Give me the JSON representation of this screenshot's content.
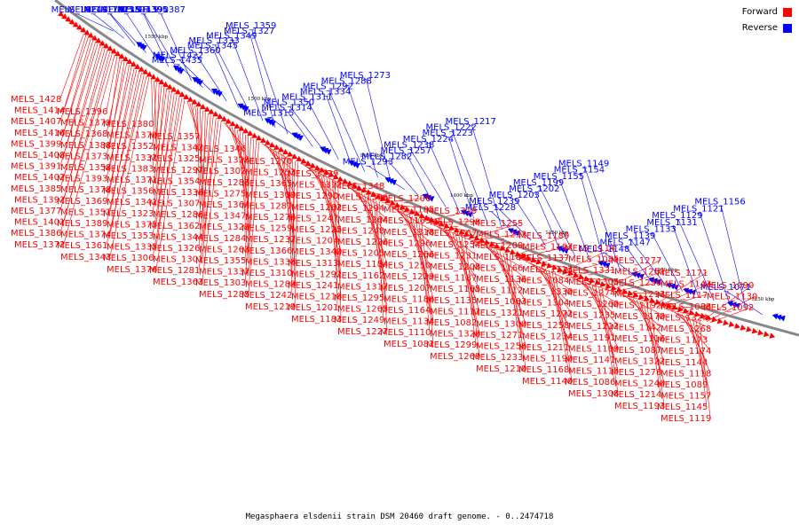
{
  "legend": {
    "forward_label": "Forward",
    "reverse_label": "Reverse",
    "forward_color": "#ff0000",
    "reverse_color": "#0000ff"
  },
  "caption": "Megasphaera elsdenii strain DSM 20460 draft genome. - 0..2474718",
  "scale_ticks": [
    "1550 kbp",
    "1500 kbp",
    "1450 kbp",
    "1400 kbp",
    "1350 kbp",
    "1300 kbp",
    "1250 kbp"
  ],
  "reverse_labels": [
    "MELS_1424",
    "MELS_1417",
    "MELS_1415",
    "MELS_1423",
    "MELS_1394",
    "MELS_1395",
    "MELS_1390",
    "MELS_1387",
    "MELS_1435",
    "MELS_1422",
    "MELS_1360",
    "MELS_1345",
    "MELS_1333",
    "MELS_1349",
    "MELS_1327",
    "MELS_1359",
    "MELS_1315",
    "MELS_1314",
    "MELS_1350",
    "MELS_1311",
    "MELS_1334",
    "MELS_1292",
    "MELS_1288",
    "MELS_1273",
    "MELS_1293",
    "MELS_1282",
    "MELS_1257",
    "MELS_1238",
    "MELS_1224",
    "MELS_1223",
    "MELS_1222",
    "MELS_1217",
    "MELS_1228",
    "MELS_1239",
    "MELS_1203",
    "MELS_1202",
    "MELS_1199",
    "MELS_1155",
    "MELS_1154",
    "MELS_1149",
    "MELS_1148",
    "MELS_1147",
    "MELS_1139",
    "MELS_1133",
    "MELS_1131",
    "MELS_1129",
    "MELS_1121",
    "MELS_1156",
    "MELS_1071"
  ],
  "forward_labels": [
    "MELS_1428",
    "MELS_1414",
    "MELS_1407",
    "MELS_1416",
    "MELS_1399",
    "MELS_1408",
    "MELS_1391",
    "MELS_1402",
    "MELS_1385",
    "MELS_1392",
    "MELS_1377",
    "MELS_1401",
    "MELS_1386",
    "MELS_1372",
    "MELS_1396",
    "MELS_1379",
    "MELS_1368",
    "MELS_1388",
    "MELS_1373",
    "MELS_1358",
    "MELS_1393",
    "MELS_1378",
    "MELS_1369",
    "MELS_1351",
    "MELS_1389",
    "MELS_1374",
    "MELS_1361",
    "MELS_1343",
    "MELS_1380",
    "MELS_1370",
    "MELS_1352",
    "MELS_1332",
    "MELS_1383",
    "MELS_1371",
    "MELS_1356",
    "MELS_1341",
    "MELS_1323",
    "MELS_1375",
    "MELS_1353",
    "MELS_1335",
    "MELS_1306",
    "MELS_1376",
    "MELS_1357",
    "MELS_1342",
    "MELS_1325",
    "MELS_1297",
    "MELS_1354",
    "MELS_1336",
    "MELS_1307",
    "MELS_1286",
    "MELS_1362",
    "MELS_1344",
    "MELS_1326",
    "MELS_1301",
    "MELS_1281",
    "MELS_1363",
    "MELS_1346",
    "MELS_1328",
    "MELS_1302",
    "MELS_1283",
    "MELS_1275",
    "MELS_1364",
    "MELS_1347",
    "MELS_1329",
    "MELS_1284",
    "MELS_1263",
    "MELS_1355",
    "MELS_1337",
    "MELS_1303",
    "MELS_1285",
    "MELS_1270",
    "MELS_1253",
    "MELS_1365",
    "MELS_1309",
    "MELS_1287",
    "MELS_1276",
    "MELS_1259",
    "MELS_1237",
    "MELS_1366",
    "MELS_1338",
    "MELS_1310",
    "MELS_1289",
    "MELS_1242",
    "MELS_1219",
    "MELS_1339",
    "MELS_1312",
    "MELS_1290",
    "MELS_1262",
    "MELS_1247",
    "MELS_1225",
    "MELS_1204",
    "MELS_1340",
    "MELS_1313",
    "MELS_1291",
    "MELS_1241",
    "MELS_1218",
    "MELS_1201",
    "MELS_1183",
    "MELS_1348",
    "MELS_1316",
    "MELS_1294",
    "MELS_1264",
    "MELS_1248",
    "MELS_1226",
    "MELS_1205",
    "MELS_1184",
    "MELS_1162",
    "MELS_1317",
    "MELS_1295",
    "MELS_1265",
    "MELS_1249",
    "MELS_1227",
    "MELS_1206",
    "MELS_1185",
    "MELS_1163",
    "MELS_1318",
    "MELS_1296",
    "MELS_1266",
    "MELS_1250",
    "MELS_1229",
    "MELS_1207",
    "MELS_1186",
    "MELS_1164",
    "MELS_1134",
    "MELS_1110",
    "MELS_1081",
    "MELS_1319",
    "MELS_1298",
    "MELS_1267",
    "MELS_1254",
    "MELS_1231",
    "MELS_1208",
    "MELS_1187",
    "MELS_1165",
    "MELS_1135",
    "MELS_1111",
    "MELS_1082",
    "MELS_1320",
    "MELS_1299",
    "MELS_1269",
    "MELS_1255",
    "MELS_1232",
    "MELS_1209",
    "MELS_1188",
    "MELS_1166",
    "MELS_1136",
    "MELS_1112",
    "MELS_1083",
    "MELS_1321",
    "MELS_1300",
    "MELS_1271",
    "MELS_1256",
    "MELS_1233",
    "MELS_1210",
    "MELS_1189",
    "MELS_1167",
    "MELS_1137",
    "MELS_1113",
    "MELS_1084",
    "MELS_1330",
    "MELS_1304",
    "MELS_1272",
    "MELS_1258",
    "MELS_1234",
    "MELS_1211",
    "MELS_1190",
    "MELS_1168",
    "MELS_1140",
    "MELS_1114",
    "MELS_1085",
    "MELS_1331",
    "MELS_1305",
    "MELS_1274",
    "MELS_1260",
    "MELS_1235",
    "MELS_1212",
    "MELS_1191",
    "MELS_1169",
    "MELS_1141",
    "MELS_1115",
    "MELS_1086",
    "MELS_1308",
    "MELS_1277",
    "MELS_1261",
    "MELS_1236",
    "MELS_1213",
    "MELS_1192",
    "MELS_1170",
    "MELS_1142",
    "MELS_1116",
    "MELS_1087",
    "MELS_1322",
    "MELS_1278",
    "MELS_1240",
    "MELS_1214",
    "MELS_1193",
    "MELS_1171",
    "MELS_1143",
    "MELS_1117",
    "MELS_1088",
    "MELS_1324",
    "MELS_1268",
    "MELS_1173",
    "MELS_1174",
    "MELS_1144",
    "MELS_1118",
    "MELS_1089",
    "MELS_1157",
    "MELS_1145",
    "MELS_1119",
    "MELS_1090",
    "MELS_1130",
    "MELS_1092"
  ]
}
